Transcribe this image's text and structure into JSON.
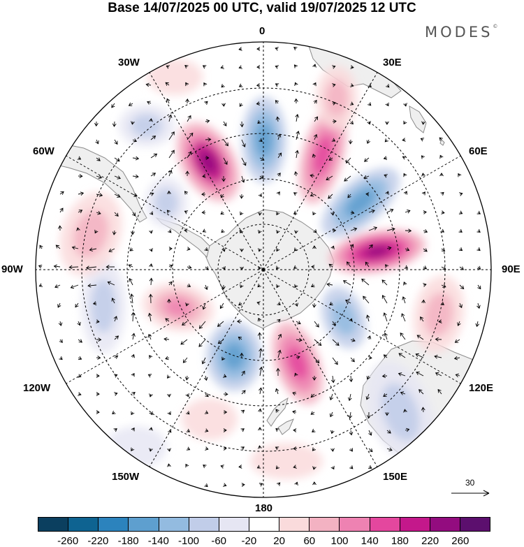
{
  "header": {
    "title": "Base 14/07/2025 00 UTC, valid 19/07/2025 12 UTC",
    "brand": "MODES"
  },
  "map": {
    "projection": "south-polar-stereographic",
    "center": "South Pole",
    "longitude_labels": [
      "0",
      "30E",
      "60E",
      "90E",
      "120E",
      "150E",
      "180",
      "150W",
      "120W",
      "90W",
      "60W",
      "30W"
    ],
    "graticule": "dashed",
    "land_color": "#efefef",
    "coastline_color": "#888888",
    "wind_vectors": true,
    "reference_vector": {
      "value": "30"
    }
  },
  "colorbar": {
    "colors": [
      "#0b3f5f",
      "#0e6391",
      "#2c83bd",
      "#5e9fcf",
      "#93bbe0",
      "#c1cde9",
      "#e6e6f3",
      "#ffffff",
      "#fadbdc",
      "#f3b2c2",
      "#ee82b2",
      "#e4479e",
      "#c4188b",
      "#930c7f",
      "#5c0f6e"
    ],
    "tick_labels": [
      "-260",
      "-220",
      "-180",
      "-140",
      "-100",
      "-60",
      "-20",
      "20",
      "60",
      "100",
      "140",
      "180",
      "220",
      "260"
    ]
  }
}
